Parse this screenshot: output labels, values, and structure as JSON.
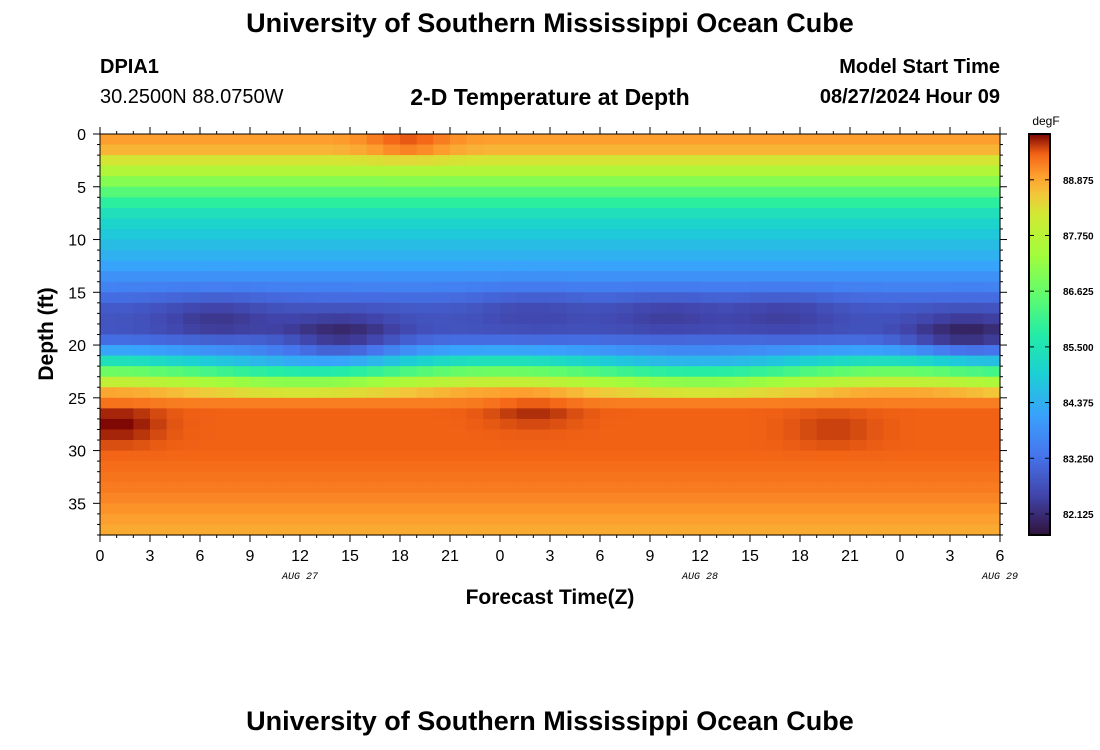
{
  "header": {
    "title": "University of Southern Mississippi Ocean Cube",
    "station_id": "DPIA1",
    "coords": "30.2500N  88.0750W",
    "plot_title": "2-D Temperature at Depth",
    "model_start_label": "Model Start Time",
    "model_start_value": "08/27/2024 Hour 09"
  },
  "footer": {
    "title": "University of Southern Mississippi Ocean Cube"
  },
  "chart_data": {
    "type": "heatmap",
    "title": "2-D Temperature at Depth",
    "xlabel": "Forecast Time(Z)",
    "ylabel": "Depth (ft)",
    "x_tick_labels": [
      "0",
      "3",
      "6",
      "9",
      "12",
      "15",
      "18",
      "21",
      "0",
      "3",
      "6",
      "9",
      "12",
      "15",
      "18",
      "21",
      "0",
      "3",
      "6"
    ],
    "date_labels": [
      {
        "text": "AUG 27",
        "hour": 12
      },
      {
        "text": "AUG 28",
        "hour": 36
      },
      {
        "text": "AUG 29",
        "hour": 54
      }
    ],
    "x_range_hours": [
      0,
      54
    ],
    "y_ticks": [
      0,
      5,
      10,
      15,
      20,
      25,
      30,
      35
    ],
    "y_range_ft": [
      0,
      38
    ],
    "colorbar": {
      "unit": "degF",
      "range": [
        81.7,
        89.8
      ],
      "ticks": [
        "88.875",
        "87.750",
        "86.625",
        "85.500",
        "84.375",
        "83.250",
        "82.125"
      ]
    },
    "depth_profile": [
      {
        "depth": 0,
        "temp": 88.9
      },
      {
        "depth": 1,
        "temp": 89.0
      },
      {
        "depth": 2,
        "temp": 88.5
      },
      {
        "depth": 3,
        "temp": 87.9
      },
      {
        "depth": 4,
        "temp": 87.3
      },
      {
        "depth": 5,
        "temp": 86.7
      },
      {
        "depth": 6,
        "temp": 86.1
      },
      {
        "depth": 7,
        "temp": 85.6
      },
      {
        "depth": 8,
        "temp": 85.2
      },
      {
        "depth": 10,
        "temp": 84.7
      },
      {
        "depth": 12,
        "temp": 84.3
      },
      {
        "depth": 14,
        "temp": 83.7
      },
      {
        "depth": 15,
        "temp": 83.4
      },
      {
        "depth": 16,
        "temp": 83.0
      },
      {
        "depth": 17,
        "temp": 82.8
      },
      {
        "depth": 19,
        "temp": 82.8
      },
      {
        "depth": 20,
        "temp": 83.6
      },
      {
        "depth": 21,
        "temp": 84.3
      },
      {
        "depth": 22,
        "temp": 85.6
      },
      {
        "depth": 23,
        "temp": 86.9
      },
      {
        "depth": 24,
        "temp": 88.1
      },
      {
        "depth": 25,
        "temp": 89.0
      },
      {
        "depth": 26,
        "temp": 89.4
      },
      {
        "depth": 30,
        "temp": 89.4
      },
      {
        "depth": 34,
        "temp": 89.2
      },
      {
        "depth": 37,
        "temp": 88.9
      },
      {
        "depth": 38,
        "temp": 88.8
      }
    ],
    "cold_pockets": [
      {
        "hour": 7,
        "depth": 17.5,
        "delta": -0.5
      },
      {
        "hour": 14.5,
        "depth": 19.5,
        "delta": -0.9
      },
      {
        "hour": 26,
        "depth": 16.5,
        "delta": -0.3
      },
      {
        "hour": 34,
        "depth": 17,
        "delta": -0.4
      },
      {
        "hour": 41,
        "depth": 17,
        "delta": -0.4
      },
      {
        "hour": 52,
        "depth": 19.5,
        "delta": -1.0
      }
    ],
    "warm_spots": [
      {
        "hour": 18.5,
        "depth": 0.8,
        "delta": 0.5
      },
      {
        "hour": 1,
        "depth": 27.5,
        "delta": 0.4
      },
      {
        "hour": 26,
        "depth": 26,
        "delta": 0.25
      },
      {
        "hour": 44,
        "depth": 28,
        "delta": 0.15
      }
    ]
  }
}
